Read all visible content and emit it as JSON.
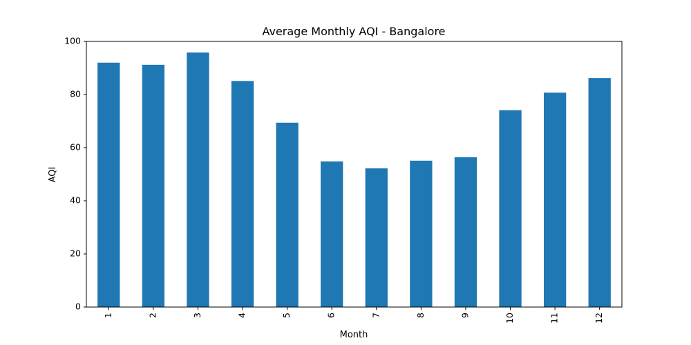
{
  "chart_data": {
    "type": "bar",
    "title": "Average Monthly AQI - Bangalore",
    "xlabel": "Month",
    "ylabel": "AQI",
    "categories": [
      "1",
      "2",
      "3",
      "4",
      "5",
      "6",
      "7",
      "8",
      "9",
      "10",
      "11",
      "12"
    ],
    "values": [
      92.0,
      91.2,
      95.8,
      85.1,
      69.4,
      54.8,
      52.2,
      55.1,
      56.4,
      74.1,
      80.7,
      86.2
    ],
    "ylim": [
      0,
      100
    ],
    "yticks": [
      0,
      20,
      40,
      60,
      80,
      100
    ],
    "grid": false,
    "legend": "none",
    "bar_color": "#1f77b4",
    "x_tick_rotation": "vertical"
  }
}
